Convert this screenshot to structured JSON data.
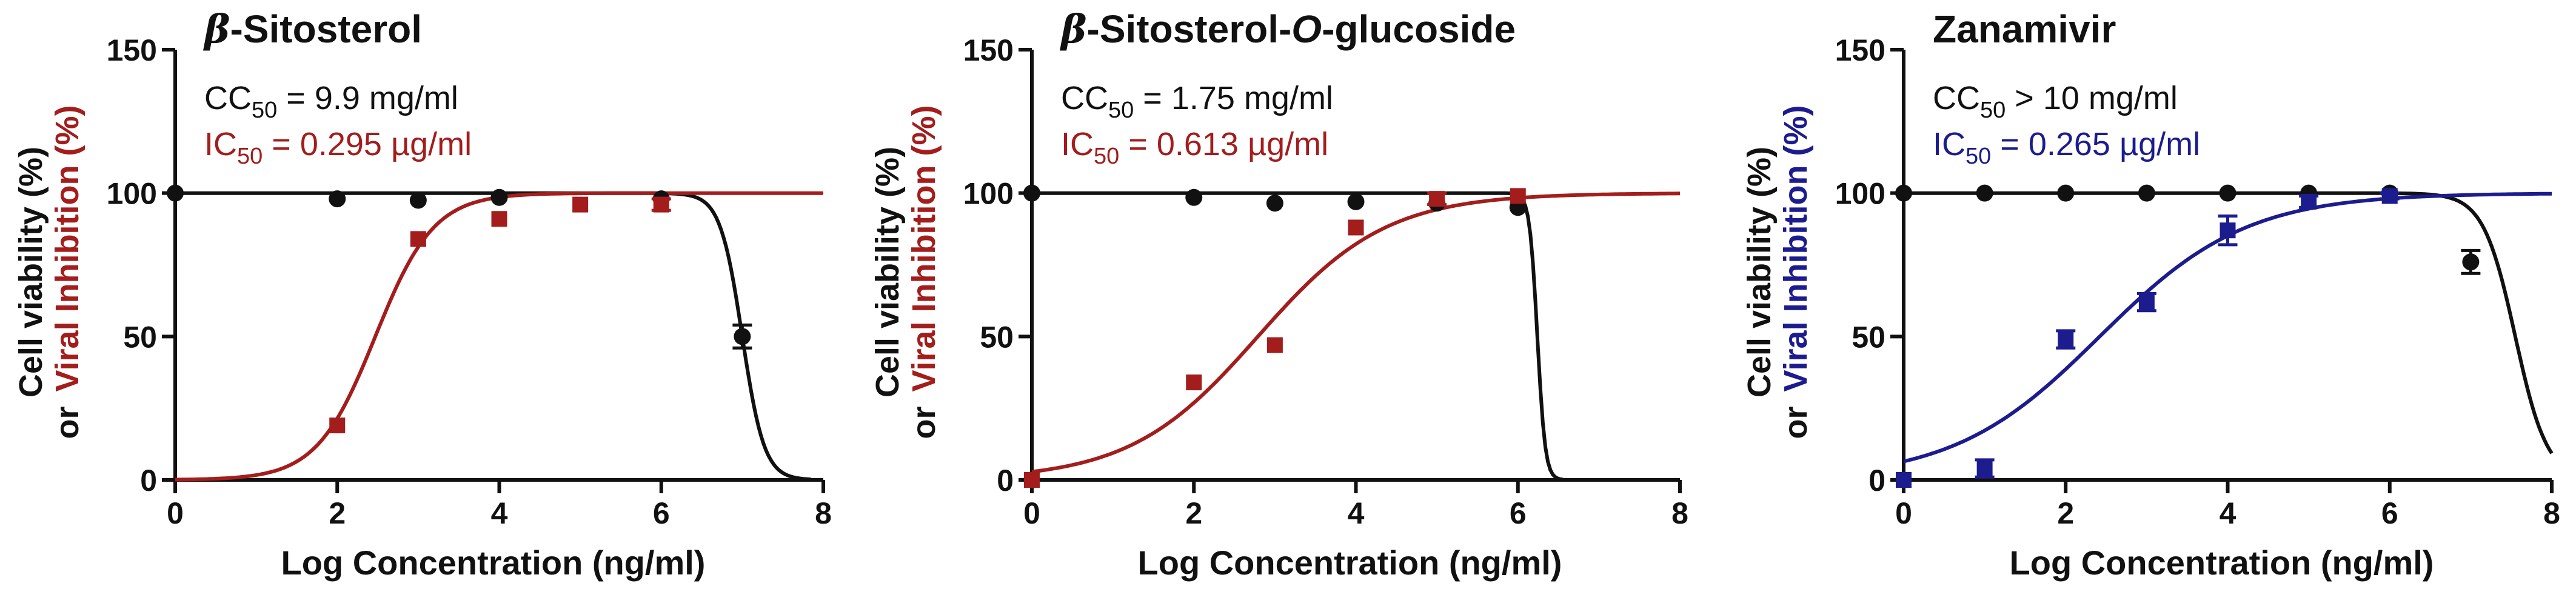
{
  "colors": {
    "black": "#111111",
    "red": "#a31d1d",
    "blue": "#1c1c8e"
  },
  "chart_data": [
    {
      "type": "scatter",
      "title": "β-Sitosterol",
      "title_parts": {
        "prefix": "β",
        "rest": "-Sitosterol"
      },
      "xlabel": "Log Concentration (ng/ml)",
      "ylabel": {
        "line1": "Cell viability (%)",
        "or": "or",
        "line2": "Viral Inhibition (%)"
      },
      "xlim": [
        0,
        8
      ],
      "ylim": [
        0,
        150
      ],
      "xticks": [
        "0",
        "2",
        "4",
        "6",
        "8"
      ],
      "yticks": [
        "0",
        "50",
        "100",
        "150"
      ],
      "grid": false,
      "annotations": {
        "cc": {
          "label": "CC",
          "sub": "50",
          "value": " = 9.9 mg/ml"
        },
        "ic": {
          "label": "IC",
          "sub": "50",
          "value": " = 0.295 µg/ml"
        }
      },
      "inhibition_color": "#a31d1d",
      "series": [
        {
          "kind": "viability",
          "marker": "circle",
          "color": "#111111",
          "x": [
            0,
            2,
            3,
            4,
            6,
            7
          ],
          "y": [
            100,
            98,
            97.5,
            98.5,
            98,
            50
          ],
          "err": [
            0,
            0,
            0,
            0,
            0,
            4
          ],
          "fit": {
            "type": "hill_down",
            "top": 100,
            "bottom": 0,
            "logx50": 7.0,
            "slope": 3.2
          }
        },
        {
          "kind": "inhibition",
          "marker": "square",
          "color": "#a31d1d",
          "x": [
            2,
            3,
            4,
            5,
            6
          ],
          "y": [
            19,
            84,
            91,
            96,
            96
          ],
          "err": [
            0,
            0,
            0,
            0,
            2
          ],
          "fit": {
            "type": "hill_up",
            "top": 100,
            "bottom": 0,
            "logx50": 2.47,
            "slope": 1.2
          }
        }
      ]
    },
    {
      "type": "scatter",
      "title": "β-Sitosterol-O-glucoside",
      "title_parts": {
        "prefix": "β",
        "mid": "-Sitosterol-",
        "italic": "O",
        "rest": "-glucoside"
      },
      "xlabel": "Log Concentration (ng/ml)",
      "ylabel": {
        "line1": "Cell viability (%)",
        "or": "or",
        "line2": "Viral Inhibition (%)"
      },
      "xlim": [
        0,
        8
      ],
      "ylim": [
        0,
        150
      ],
      "xticks": [
        "0",
        "2",
        "4",
        "6",
        "8"
      ],
      "yticks": [
        "0",
        "50",
        "100",
        "150"
      ],
      "grid": false,
      "annotations": {
        "cc": {
          "label": "CC",
          "sub": "50",
          "value": " = 1.75 mg/ml"
        },
        "ic": {
          "label": "IC",
          "sub": "50",
          "value": " = 0.613 µg/ml"
        }
      },
      "inhibition_color": "#a31d1d",
      "series": [
        {
          "kind": "viability",
          "marker": "circle",
          "color": "#111111",
          "x": [
            0,
            2,
            3,
            4,
            5,
            6
          ],
          "y": [
            100,
            98.5,
            96.5,
            97,
            96.5,
            95
          ],
          "err": [
            0,
            0,
            0,
            0,
            0,
            0
          ],
          "fit": {
            "type": "hill_down",
            "top": 100,
            "bottom": 0,
            "logx50": 6.24,
            "slope": 9
          }
        },
        {
          "kind": "inhibition",
          "marker": "square",
          "color": "#a31d1d",
          "x": [
            0,
            2,
            3,
            4,
            5,
            6
          ],
          "y": [
            0,
            34,
            47,
            88,
            98,
            99
          ],
          "err": [
            0,
            0,
            0,
            0,
            2,
            0
          ],
          "fit": {
            "type": "hill_up",
            "top": 100,
            "bottom": 0,
            "logx50": 2.79,
            "slope": 0.55
          }
        }
      ]
    },
    {
      "type": "scatter",
      "title": "Zanamivir",
      "title_parts": {
        "prefix": "",
        "rest": "Zanamivir"
      },
      "xlabel": "Log Concentration (ng/ml)",
      "ylabel": {
        "line1": "Cell viability (%)",
        "or": "or",
        "line2": "Viral Inhibition (%)"
      },
      "xlim": [
        0,
        8
      ],
      "ylim": [
        0,
        150
      ],
      "xticks": [
        "0",
        "2",
        "4",
        "6",
        "8"
      ],
      "yticks": [
        "0",
        "50",
        "100",
        "150"
      ],
      "grid": false,
      "annotations": {
        "cc": {
          "label": "CC",
          "sub": "50",
          "value": " > 10 mg/ml"
        },
        "ic": {
          "label": "IC",
          "sub": "50",
          "value": " = 0.265 µg/ml"
        }
      },
      "inhibition_color": "#1c1c8e",
      "series": [
        {
          "kind": "viability",
          "marker": "circle",
          "color": "#111111",
          "x": [
            0,
            1,
            2,
            3,
            4,
            5,
            6,
            7
          ],
          "y": [
            100,
            100,
            100,
            100,
            100,
            100,
            100,
            76
          ],
          "err": [
            0,
            0,
            0,
            0,
            0,
            0,
            0,
            4
          ],
          "fit": {
            "type": "hill_down",
            "top": 100,
            "bottom": 0,
            "logx50": 7.55,
            "slope": 2.2
          }
        },
        {
          "kind": "inhibition",
          "marker": "square",
          "color": "#1c1c8e",
          "x": [
            0,
            1,
            2,
            3,
            4,
            5,
            6
          ],
          "y": [
            0,
            4,
            49,
            62,
            87,
            97,
            99
          ],
          "err": [
            0,
            3,
            3,
            3,
            5,
            2,
            1
          ],
          "fit": {
            "type": "hill_up",
            "top": 100,
            "bottom": 0,
            "logx50": 2.42,
            "slope": 0.48
          }
        }
      ]
    }
  ]
}
